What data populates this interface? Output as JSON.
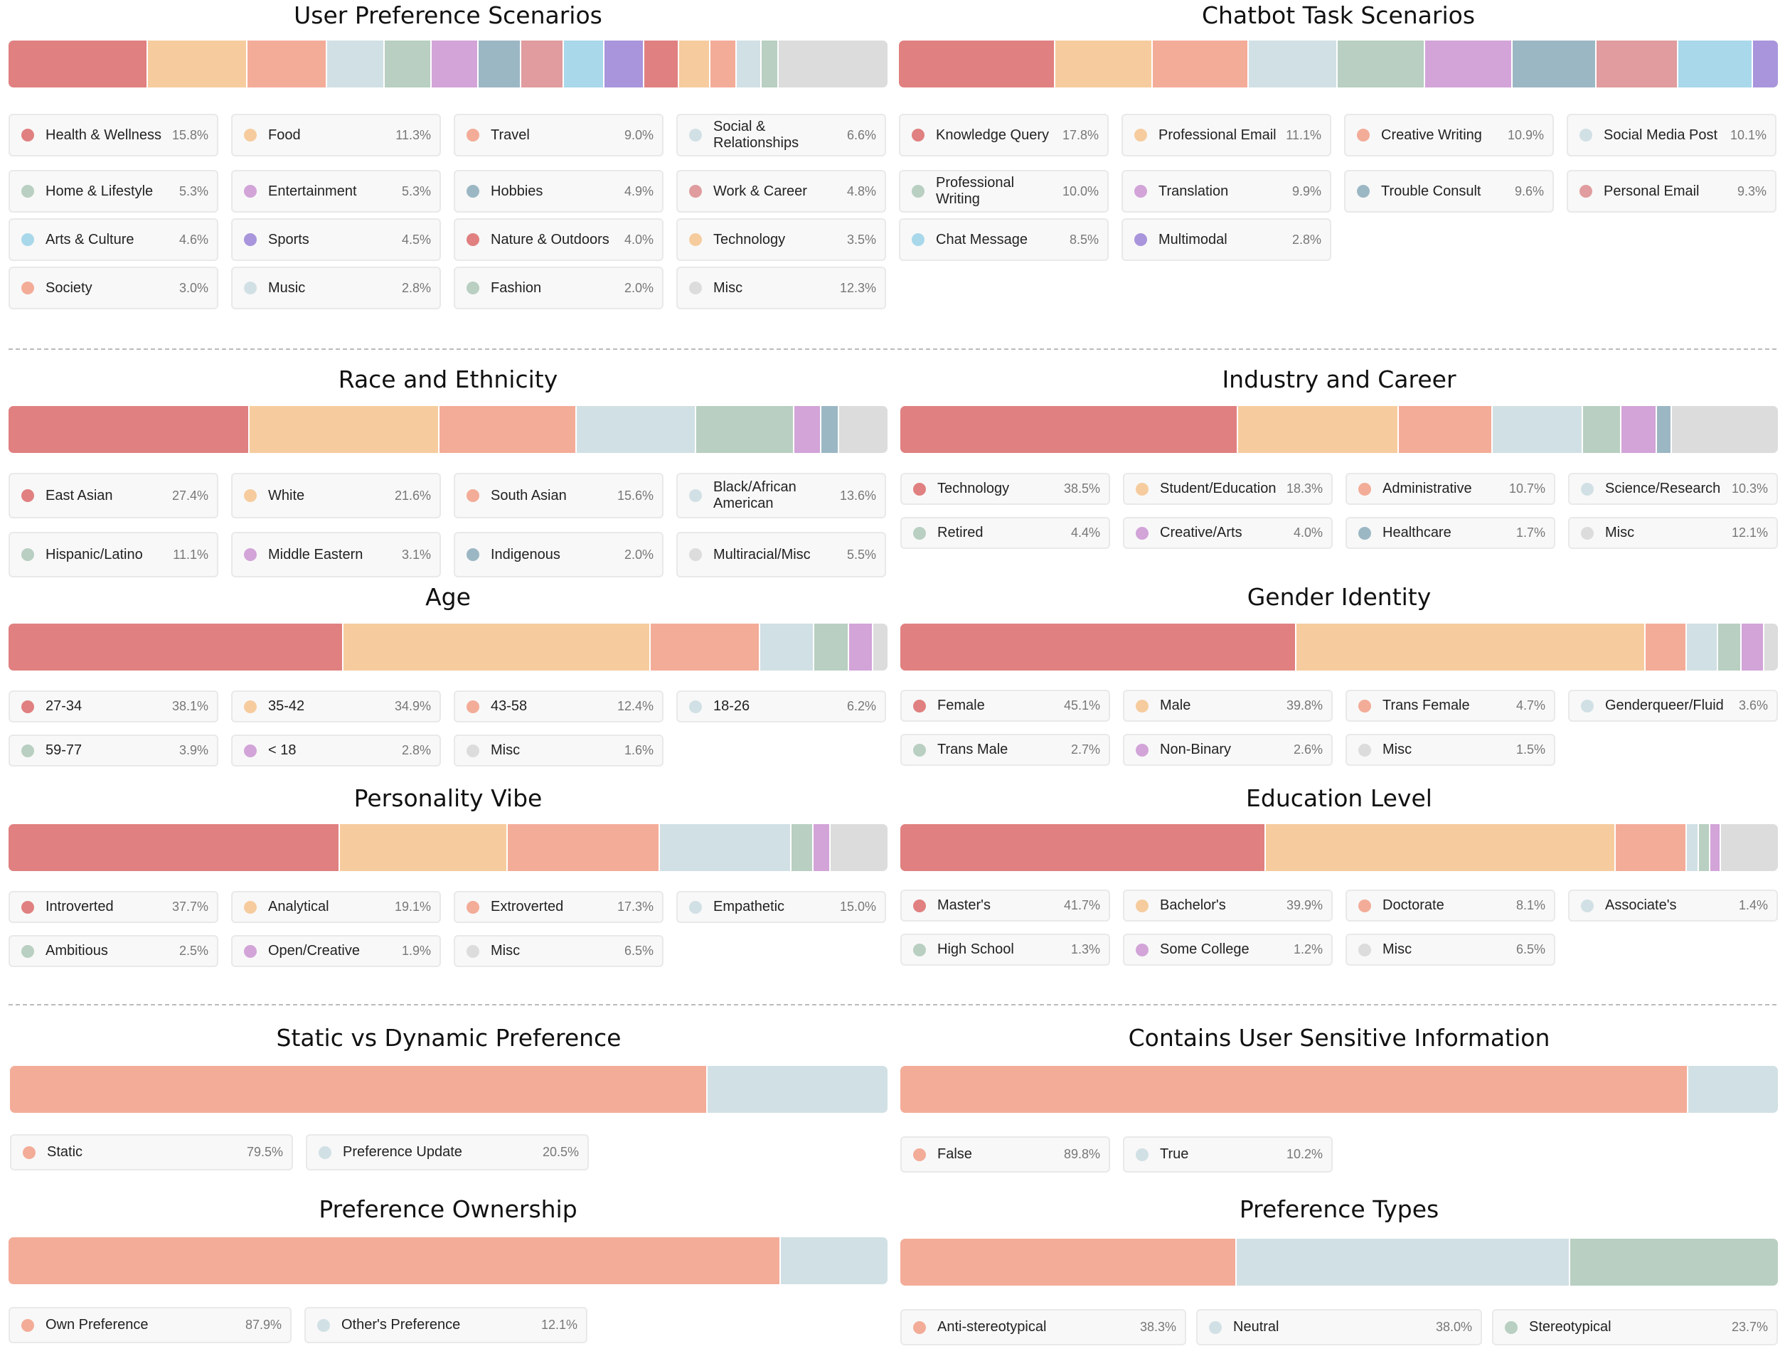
{
  "colors": {
    "red": "#e08080",
    "peach": "#f6cc9e",
    "salmon": "#f3ac98",
    "light_blue_gray": "#d1e0e4",
    "sage": "#b8cfc1",
    "lavender": "#d2a4d8",
    "steel_blue": "#9cb7c4",
    "dusty_rose": "#e09c9e",
    "sky": "#a8d8ea",
    "purple": "#a895dc",
    "misc_gray": "#dcdcdc"
  },
  "chart_data": [
    {
      "id": "user_pref",
      "type": "bar",
      "subtype": "stacked-100-percent",
      "title": "User Preference Scenarios",
      "categories": [
        "Health & Wellness",
        "Food",
        "Travel",
        "Social & Relationships",
        "Home & Lifestyle",
        "Entertainment",
        "Hobbies",
        "Work & Career",
        "Arts & Culture",
        "Sports",
        "Nature & Outdoors",
        "Technology",
        "Society",
        "Music",
        "Fashion",
        "Misc"
      ],
      "values": [
        15.8,
        11.3,
        9.0,
        6.6,
        5.3,
        5.3,
        4.9,
        4.8,
        4.6,
        4.5,
        4.0,
        3.5,
        3.0,
        2.8,
        2.0,
        12.3
      ],
      "value_labels": [
        "15.8%",
        "11.3%",
        "9.0%",
        "6.6%",
        "5.3%",
        "5.3%",
        "4.9%",
        "4.8%",
        "4.6%",
        "4.5%",
        "4.0%",
        "3.5%",
        "3.0%",
        "2.8%",
        "2.0%",
        "12.3%"
      ],
      "colors": [
        "#e08080",
        "#f6cc9e",
        "#f3ac98",
        "#d1e0e4",
        "#b8cfc1",
        "#d2a4d8",
        "#9cb7c4",
        "#e09c9e",
        "#a8d8ea",
        "#a895dc",
        "#e08080",
        "#f6cc9e",
        "#f3ac98",
        "#d1e0e4",
        "#b8cfc1",
        "#dcdcdc"
      ],
      "unit": "%"
    },
    {
      "id": "chatbot",
      "type": "bar",
      "subtype": "stacked-100-percent",
      "title": "Chatbot Task Scenarios",
      "categories": [
        "Knowledge Query",
        "Professional Email",
        "Creative Writing",
        "Social Media Post",
        "Professional Writing",
        "Translation",
        "Trouble Consult",
        "Personal Email",
        "Chat Message",
        "Multimodal"
      ],
      "values": [
        17.8,
        11.1,
        10.9,
        10.1,
        10.0,
        9.9,
        9.6,
        9.3,
        8.5,
        2.8
      ],
      "value_labels": [
        "17.8%",
        "11.1%",
        "10.9%",
        "10.1%",
        "10.0%",
        "9.9%",
        "9.6%",
        "9.3%",
        "8.5%",
        "2.8%"
      ],
      "colors": [
        "#e08080",
        "#f6cc9e",
        "#f3ac98",
        "#d1e0e4",
        "#b8cfc1",
        "#d2a4d8",
        "#9cb7c4",
        "#e09c9e",
        "#a8d8ea",
        "#a895dc"
      ],
      "unit": "%"
    },
    {
      "id": "race",
      "type": "bar",
      "subtype": "stacked-100-percent",
      "title": "Race and Ethnicity",
      "categories": [
        "East Asian",
        "White",
        "South Asian",
        "Black/African American",
        "Hispanic/Latino",
        "Middle Eastern",
        "Indigenous",
        "Multiracial/Misc"
      ],
      "values": [
        27.4,
        21.6,
        15.6,
        13.6,
        11.1,
        3.1,
        2.0,
        5.5
      ],
      "value_labels": [
        "27.4%",
        "21.6%",
        "15.6%",
        "13.6%",
        "11.1%",
        "3.1%",
        "2.0%",
        "5.5%"
      ],
      "colors": [
        "#e08080",
        "#f6cc9e",
        "#f3ac98",
        "#d1e0e4",
        "#b8cfc1",
        "#d2a4d8",
        "#9cb7c4",
        "#dcdcdc"
      ],
      "unit": "%"
    },
    {
      "id": "industry",
      "type": "bar",
      "subtype": "stacked-100-percent",
      "title": "Industry and Career",
      "categories": [
        "Technology",
        "Student/Education",
        "Administrative",
        "Science/Research",
        "Retired",
        "Creative/Arts",
        "Healthcare",
        "Misc"
      ],
      "values": [
        38.5,
        18.3,
        10.7,
        10.3,
        4.4,
        4.0,
        1.7,
        12.1
      ],
      "value_labels": [
        "38.5%",
        "18.3%",
        "10.7%",
        "10.3%",
        "4.4%",
        "4.0%",
        "1.7%",
        "12.1%"
      ],
      "colors": [
        "#e08080",
        "#f6cc9e",
        "#f3ac98",
        "#d1e0e4",
        "#b8cfc1",
        "#d2a4d8",
        "#9cb7c4",
        "#dcdcdc"
      ],
      "unit": "%"
    },
    {
      "id": "age",
      "type": "bar",
      "subtype": "stacked-100-percent",
      "title": "Age",
      "categories": [
        "27-34",
        "35-42",
        "43-58",
        "18-26",
        "59-77",
        "< 18",
        "Misc"
      ],
      "values": [
        38.1,
        34.9,
        12.4,
        6.2,
        3.9,
        2.8,
        1.6
      ],
      "value_labels": [
        "38.1%",
        "34.9%",
        "12.4%",
        "6.2%",
        "3.9%",
        "2.8%",
        "1.6%"
      ],
      "colors": [
        "#e08080",
        "#f6cc9e",
        "#f3ac98",
        "#d1e0e4",
        "#b8cfc1",
        "#d2a4d8",
        "#dcdcdc"
      ],
      "unit": "%"
    },
    {
      "id": "gender",
      "type": "bar",
      "subtype": "stacked-100-percent",
      "title": "Gender Identity",
      "categories": [
        "Female",
        "Male",
        "Trans Female",
        "Genderqueer/Fluid",
        "Trans Male",
        "Non-Binary",
        "Misc"
      ],
      "values": [
        45.1,
        39.8,
        4.7,
        3.6,
        2.7,
        2.6,
        1.5
      ],
      "value_labels": [
        "45.1%",
        "39.8%",
        "4.7%",
        "3.6%",
        "2.7%",
        "2.6%",
        "1.5%"
      ],
      "colors": [
        "#e08080",
        "#f6cc9e",
        "#f3ac98",
        "#d1e0e4",
        "#b8cfc1",
        "#d2a4d8",
        "#dcdcdc"
      ],
      "unit": "%"
    },
    {
      "id": "personality",
      "type": "bar",
      "subtype": "stacked-100-percent",
      "title": "Personality Vibe",
      "categories": [
        "Introverted",
        "Analytical",
        "Extroverted",
        "Empathetic",
        "Ambitious",
        "Open/Creative",
        "Misc"
      ],
      "values": [
        37.7,
        19.1,
        17.3,
        15.0,
        2.5,
        1.9,
        6.5
      ],
      "value_labels": [
        "37.7%",
        "19.1%",
        "17.3%",
        "15.0%",
        "2.5%",
        "1.9%",
        "6.5%"
      ],
      "colors": [
        "#e08080",
        "#f6cc9e",
        "#f3ac98",
        "#d1e0e4",
        "#b8cfc1",
        "#d2a4d8",
        "#dcdcdc"
      ],
      "unit": "%"
    },
    {
      "id": "education",
      "type": "bar",
      "subtype": "stacked-100-percent",
      "title": "Education Level",
      "categories": [
        "Master's",
        "Bachelor's",
        "Doctorate",
        "Associate's",
        "High School",
        "Some College",
        "Misc"
      ],
      "values": [
        41.7,
        39.9,
        8.1,
        1.4,
        1.3,
        1.2,
        6.5
      ],
      "value_labels": [
        "41.7%",
        "39.9%",
        "8.1%",
        "1.4%",
        "1.3%",
        "1.2%",
        "6.5%"
      ],
      "colors": [
        "#e08080",
        "#f6cc9e",
        "#f3ac98",
        "#d1e0e4",
        "#b8cfc1",
        "#d2a4d8",
        "#dcdcdc"
      ],
      "unit": "%"
    },
    {
      "id": "static_dynamic",
      "type": "bar",
      "subtype": "stacked-100-percent",
      "title": "Static vs Dynamic Preference",
      "categories": [
        "Static",
        "Preference Update"
      ],
      "values": [
        79.5,
        20.5
      ],
      "value_labels": [
        "79.5%",
        "20.5%"
      ],
      "colors": [
        "#f3ac98",
        "#d1e0e4"
      ],
      "unit": "%"
    },
    {
      "id": "sensitive",
      "type": "bar",
      "subtype": "stacked-100-percent",
      "title": "Contains User Sensitive Information",
      "categories": [
        "False",
        "True"
      ],
      "values": [
        89.8,
        10.2
      ],
      "value_labels": [
        "89.8%",
        "10.2%"
      ],
      "colors": [
        "#f3ac98",
        "#d1e0e4"
      ],
      "unit": "%"
    },
    {
      "id": "ownership",
      "type": "bar",
      "subtype": "stacked-100-percent",
      "title": "Preference Ownership",
      "categories": [
        "Own Preference",
        "Other's Preference"
      ],
      "values": [
        87.9,
        12.1
      ],
      "value_labels": [
        "87.9%",
        "12.1%"
      ],
      "colors": [
        "#f3ac98",
        "#d1e0e4"
      ],
      "unit": "%"
    },
    {
      "id": "types",
      "type": "bar",
      "subtype": "stacked-100-percent",
      "title": "Preference Types",
      "categories": [
        "Anti-stereotypical",
        "Neutral",
        "Stereotypical"
      ],
      "values": [
        38.3,
        38.0,
        23.7
      ],
      "value_labels": [
        "38.3%",
        "38.0%",
        "23.7%"
      ],
      "colors": [
        "#f3ac98",
        "#d1e0e4",
        "#b8cfc1"
      ],
      "unit": "%"
    }
  ]
}
